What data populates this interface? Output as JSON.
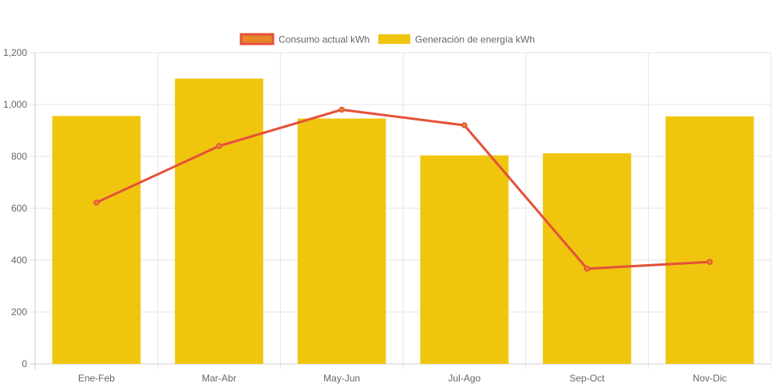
{
  "chart_data": {
    "type": "bar",
    "categories": [
      "Ene-Feb",
      "Mar-Abr",
      "May-Jun",
      "Jul-Ago",
      "Sep-Oct",
      "Nov-Dic"
    ],
    "ylim": [
      0,
      1200
    ],
    "yticks": [
      0,
      200,
      400,
      600,
      800,
      1000,
      1200
    ],
    "ytick_labels": [
      "0",
      "200",
      "400",
      "600",
      "800",
      "1,000",
      "1,200"
    ],
    "grid": true,
    "legend_position": "top-center",
    "series": [
      {
        "name": "Consumo actual kWh",
        "type": "line",
        "color": "#e4513a",
        "fill_color": "#e8862a",
        "values": [
          622,
          840,
          980,
          920,
          367,
          393
        ]
      },
      {
        "name": "Generación de energía kWh",
        "type": "bar",
        "color": "#f0c50e",
        "values": [
          956,
          1100,
          946,
          804,
          812,
          954
        ]
      }
    ]
  }
}
